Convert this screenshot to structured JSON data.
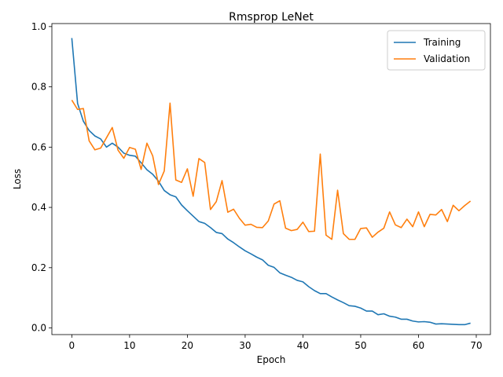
{
  "chart_data": {
    "type": "line",
    "title": "Rmsprop LeNet",
    "xlabel": "Epoch",
    "ylabel": "Loss",
    "xlim": [
      -3.45,
      72.45
    ],
    "ylim": [
      -0.022,
      1.01
    ],
    "xticks": [
      0,
      10,
      20,
      30,
      40,
      50,
      60,
      70
    ],
    "yticks": [
      0.0,
      0.2,
      0.4,
      0.6,
      0.8,
      1.0
    ],
    "xtick_labels": [
      "0",
      "10",
      "20",
      "30",
      "40",
      "50",
      "60",
      "70"
    ],
    "ytick_labels": [
      "0.0",
      "0.2",
      "0.4",
      "0.6",
      "0.8",
      "1.0"
    ],
    "grid": false,
    "legend_position": "top-right",
    "series": [
      {
        "name": "Training",
        "color": "#1f77b4",
        "values": [
          0.962,
          0.745,
          0.686,
          0.655,
          0.637,
          0.627,
          0.6,
          0.613,
          0.6,
          0.58,
          0.573,
          0.57,
          0.548,
          0.525,
          0.51,
          0.487,
          0.456,
          0.442,
          0.435,
          0.408,
          0.389,
          0.371,
          0.353,
          0.347,
          0.333,
          0.317,
          0.313,
          0.295,
          0.283,
          0.269,
          0.256,
          0.246,
          0.235,
          0.226,
          0.208,
          0.201,
          0.183,
          0.175,
          0.168,
          0.158,
          0.153,
          0.137,
          0.124,
          0.114,
          0.114,
          0.103,
          0.093,
          0.084,
          0.074,
          0.072,
          0.066,
          0.056,
          0.056,
          0.044,
          0.047,
          0.039,
          0.036,
          0.029,
          0.029,
          0.023,
          0.02,
          0.021,
          0.019,
          0.013,
          0.014,
          0.013,
          0.012,
          0.011,
          0.011,
          0.016
        ]
      },
      {
        "name": "Validation",
        "color": "#ff7f0e",
        "values": [
          0.756,
          0.725,
          0.728,
          0.621,
          0.591,
          0.597,
          0.631,
          0.665,
          0.59,
          0.563,
          0.599,
          0.593,
          0.526,
          0.613,
          0.571,
          0.476,
          0.521,
          0.746,
          0.491,
          0.483,
          0.528,
          0.437,
          0.562,
          0.549,
          0.393,
          0.419,
          0.489,
          0.384,
          0.394,
          0.364,
          0.341,
          0.344,
          0.334,
          0.333,
          0.355,
          0.411,
          0.422,
          0.331,
          0.323,
          0.327,
          0.351,
          0.32,
          0.321,
          0.577,
          0.308,
          0.294,
          0.457,
          0.313,
          0.294,
          0.294,
          0.33,
          0.332,
          0.301,
          0.318,
          0.331,
          0.385,
          0.342,
          0.333,
          0.361,
          0.336,
          0.385,
          0.336,
          0.377,
          0.375,
          0.393,
          0.353,
          0.407,
          0.389,
          0.406,
          0.421
        ]
      }
    ]
  }
}
